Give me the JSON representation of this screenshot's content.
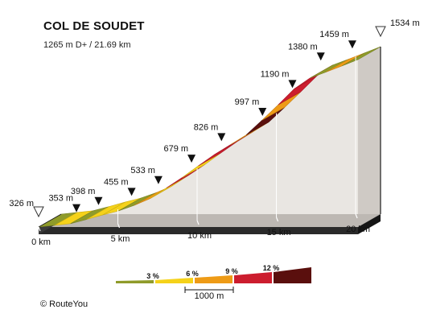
{
  "title": "COL DE SOUDET",
  "subtitle": "1265 m D+ / 21.69 km",
  "credit": "© RouteYou",
  "colors": {
    "grade_0_3": "#8f9b2a",
    "grade_3_6": "#f5d21a",
    "grade_6_9": "#ee9b16",
    "grade_9_12": "#cc1d2e",
    "grade_12_plus": "#5a0f0d",
    "wall": "#e9e6e2",
    "edge": "#1e1e1e"
  },
  "chart_data": {
    "type": "area",
    "title": "COL DE SOUDET",
    "subtitle": "1265 m D+ / 21.69 km",
    "x_unit": "km",
    "y_unit": "m",
    "xlim": [
      0,
      21.69
    ],
    "ylim": [
      326,
      1534
    ],
    "km_ticks": [
      {
        "km": 0,
        "label": "0 km"
      },
      {
        "km": 5,
        "label": "5 km"
      },
      {
        "km": 10,
        "label": "10 km"
      },
      {
        "km": 15,
        "label": "15 km"
      },
      {
        "km": 20,
        "label": "20 km"
      }
    ],
    "markers": [
      {
        "label": "326 m",
        "elev": 326,
        "kind": "start"
      },
      {
        "label": "353 m",
        "elev": 353,
        "kind": "point"
      },
      {
        "label": "398 m",
        "elev": 398,
        "kind": "point"
      },
      {
        "label": "455 m",
        "elev": 455,
        "kind": "point"
      },
      {
        "label": "533 m",
        "elev": 533,
        "kind": "point"
      },
      {
        "label": "679 m",
        "elev": 679,
        "kind": "point"
      },
      {
        "label": "826 m",
        "elev": 826,
        "kind": "point"
      },
      {
        "label": "997 m",
        "elev": 997,
        "kind": "point"
      },
      {
        "label": "1190 m",
        "elev": 1190,
        "kind": "point"
      },
      {
        "label": "1380 m",
        "elev": 1380,
        "kind": "point"
      },
      {
        "label": "1459 m",
        "elev": 1459,
        "kind": "point"
      },
      {
        "label": "1534 m",
        "elev": 1534,
        "kind": "end"
      }
    ],
    "segments": [
      {
        "grade_class": 0
      },
      {
        "grade_class": 1
      },
      {
        "grade_class": 0
      },
      {
        "grade_class": 1
      },
      {
        "grade_class": 1
      },
      {
        "grade_class": 0
      },
      {
        "grade_class": 2
      },
      {
        "grade_class": 1
      },
      {
        "grade_class": 3
      },
      {
        "grade_class": 1
      },
      {
        "grade_class": 3
      },
      {
        "grade_class": 3
      },
      {
        "grade_class": 2
      },
      {
        "grade_class": 4
      },
      {
        "grade_class": 2
      },
      {
        "grade_class": 3
      },
      {
        "grade_class": 3
      },
      {
        "grade_class": 0
      },
      {
        "grade_class": 2
      },
      {
        "grade_class": 0
      }
    ],
    "legend": {
      "items": [
        {
          "label": "",
          "grade_class": 0
        },
        {
          "label": "3 %",
          "grade_class": 1
        },
        {
          "label": "6 %",
          "grade_class": 2
        },
        {
          "label": "9 %",
          "grade_class": 3
        },
        {
          "label": "12 %",
          "grade_class": 4
        }
      ],
      "scale_label": "1000 m"
    }
  }
}
